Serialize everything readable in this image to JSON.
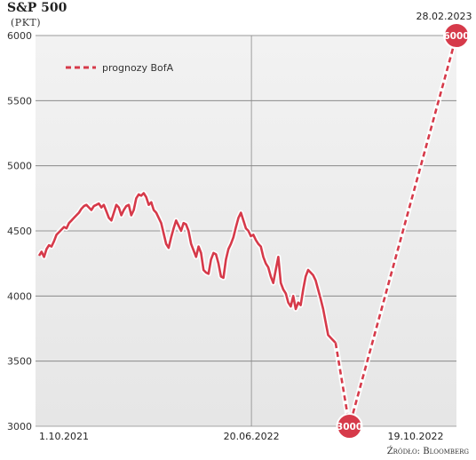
{
  "chart_data": {
    "type": "line",
    "title": "S&P 500",
    "subtitle": "(PKT)",
    "source": "Źródło: Bloomberg",
    "ylim": [
      3000,
      6000
    ],
    "yticks": [
      "3000",
      "3500",
      "4000",
      "4500",
      "5000",
      "5500",
      "6000"
    ],
    "grid": true,
    "legend_position": "top-left",
    "x_labels": {
      "start": "1.10.2021",
      "mid": "20.06.2022",
      "end_actual": "19.10.2022",
      "forecast_end": "28.02.2023"
    },
    "colors": {
      "series": "#d63a4a",
      "panel": "#ececec",
      "grid": "#7a7a7a"
    },
    "series": [
      {
        "name": "",
        "style": "solid",
        "dates": [
          "2021-10-01",
          "2022-10-15"
        ],
        "values": [
          4310,
          4340,
          4300,
          4360,
          4390,
          4380,
          4420,
          4470,
          4490,
          4510,
          4530,
          4520,
          4560,
          4580,
          4600,
          4620,
          4640,
          4670,
          4690,
          4700,
          4680,
          4660,
          4690,
          4700,
          4710,
          4680,
          4700,
          4650,
          4600,
          4580,
          4640,
          4700,
          4680,
          4620,
          4660,
          4690,
          4700,
          4620,
          4660,
          4750,
          4780,
          4770,
          4790,
          4760,
          4700,
          4720,
          4660,
          4640,
          4600,
          4560,
          4480,
          4400,
          4370,
          4450,
          4520,
          4580,
          4540,
          4500,
          4560,
          4550,
          4500,
          4400,
          4350,
          4300,
          4380,
          4330,
          4200,
          4180,
          4170,
          4280,
          4330,
          4320,
          4250,
          4150,
          4140,
          4280,
          4360,
          4400,
          4450,
          4530,
          4600,
          4640,
          4580,
          4520,
          4500,
          4460,
          4470,
          4430,
          4400,
          4380,
          4300,
          4250,
          4220,
          4150,
          4100,
          4200,
          4300,
          4100,
          4050,
          4020,
          3950,
          3920,
          4000,
          3900,
          3950,
          3930,
          4050,
          4150,
          4200,
          4180,
          4160,
          4120,
          4050,
          3980,
          3900,
          3800,
          3700,
          3680,
          3660,
          3640
        ]
      },
      {
        "name": "prognozy BofA",
        "style": "dashed",
        "points": [
          {
            "x": "2022-06-25",
            "y": 3640
          },
          {
            "x": "2022-10-19",
            "y": 3000
          },
          {
            "x": "2023-02-28",
            "y": 6000
          }
        ]
      }
    ],
    "badges": [
      {
        "label": "3000",
        "x": "2022-10-19",
        "y": 3000
      },
      {
        "label": "6000",
        "x": "2023-02-28",
        "y": 6000
      }
    ]
  }
}
